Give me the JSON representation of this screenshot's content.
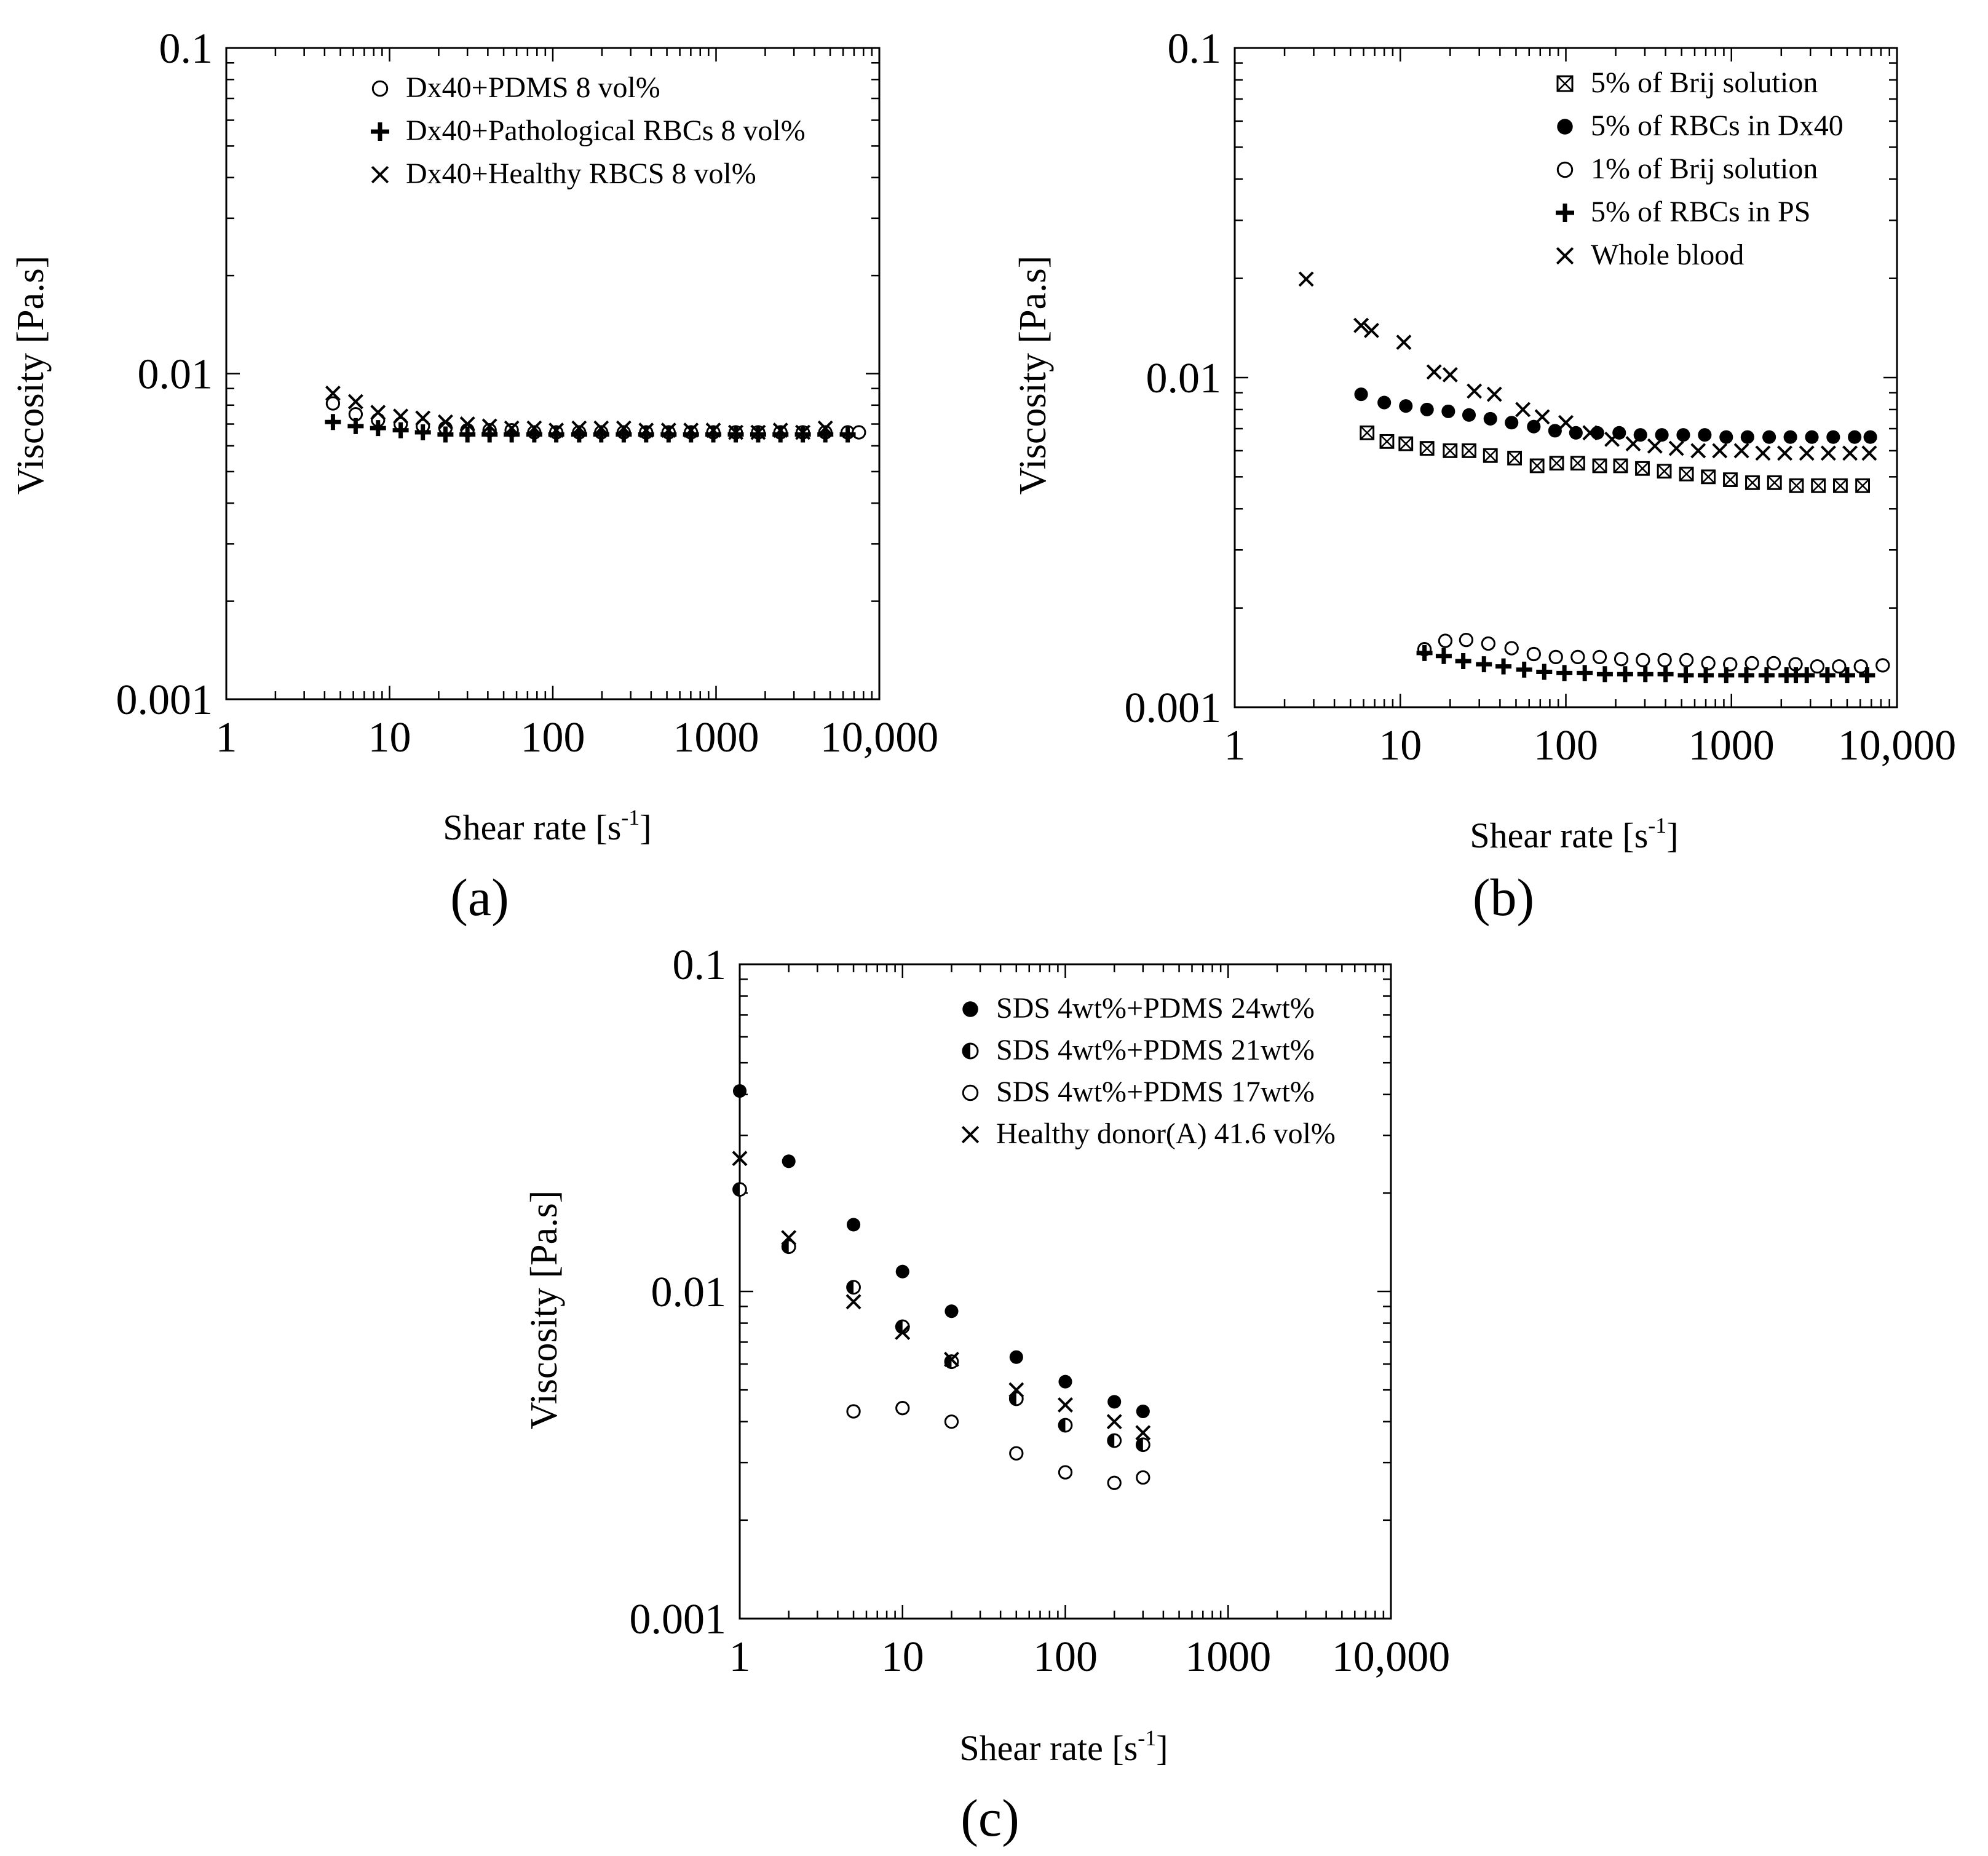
{
  "panels": [
    {
      "id": "a",
      "label": "(a)",
      "chart_data": {
        "type": "scatter",
        "xscale": "log",
        "yscale": "log",
        "xlim": [
          1,
          10000
        ],
        "ylim": [
          0.001,
          0.1
        ],
        "xlabel_main": "Shear rate  [s",
        "xlabel_sup": "-1",
        "xlabel_end": "]",
        "ylabel": "Viscosity [Pa.s]",
        "xticks": [
          {
            "v": 1,
            "t": "1"
          },
          {
            "v": 10,
            "t": "10"
          },
          {
            "v": 100,
            "t": "100"
          },
          {
            "v": 1000,
            "t": "1000"
          },
          {
            "v": 10000,
            "t": "10,000"
          }
        ],
        "yticks": [
          {
            "v": 0.1,
            "t": "0.1"
          },
          {
            "v": 0.01,
            "t": "0.01"
          },
          {
            "v": 0.001,
            "t": "0.001"
          }
        ],
        "legend_position": "top-right",
        "series": [
          {
            "name": "Dx40+PDMS 8 vol%",
            "marker": "circle",
            "x": [
              4.5,
              6.2,
              8.5,
              11.7,
              16,
              22,
              30,
              41,
              56,
              77,
              105,
              145,
              198,
              272,
              373,
              512,
              702,
              962,
              1320,
              1810,
              2480,
              3400,
              4670,
              6400,
              7500
            ],
            "y": [
              0.0081,
              0.0075,
              0.0072,
              0.007,
              0.0069,
              0.0068,
              0.0067,
              0.0067,
              0.0067,
              0.0066,
              0.0066,
              0.0066,
              0.0066,
              0.0066,
              0.0066,
              0.0066,
              0.0066,
              0.0066,
              0.0066,
              0.0066,
              0.0066,
              0.0066,
              0.0066,
              0.0066,
              0.0066
            ]
          },
          {
            "name": "Dx40+Pathological RBCs 8 vol%",
            "marker": "plus",
            "x": [
              4.5,
              6.2,
              8.5,
              11.7,
              16,
              22,
              30,
              41,
              56,
              77,
              105,
              145,
              198,
              272,
              373,
              512,
              702,
              962,
              1320,
              1810,
              2480,
              3400,
              4670,
              6400
            ],
            "y": [
              0.0071,
              0.0069,
              0.0068,
              0.0067,
              0.0066,
              0.0065,
              0.0065,
              0.0065,
              0.0065,
              0.0065,
              0.0065,
              0.0065,
              0.0065,
              0.0065,
              0.0065,
              0.0065,
              0.0065,
              0.0065,
              0.0065,
              0.0065,
              0.0065,
              0.0065,
              0.0065,
              0.0065
            ]
          },
          {
            "name": "Dx40+Healthy RBCS 8 vol%",
            "marker": "x",
            "x": [
              4.5,
              6.2,
              8.5,
              11.7,
              16,
              22,
              30,
              41,
              56,
              77,
              105,
              145,
              198,
              272,
              373,
              512,
              702,
              962,
              1320,
              1810,
              2480,
              3400,
              4670
            ],
            "y": [
              0.0087,
              0.0082,
              0.0076,
              0.0074,
              0.0073,
              0.0071,
              0.007,
              0.0069,
              0.0068,
              0.0068,
              0.0067,
              0.0068,
              0.0068,
              0.0068,
              0.0067,
              0.0067,
              0.0067,
              0.0067,
              0.0066,
              0.0066,
              0.0067,
              0.0066,
              0.0068
            ]
          }
        ]
      }
    },
    {
      "id": "b",
      "label": "(b)",
      "chart_data": {
        "type": "scatter",
        "xscale": "log",
        "yscale": "log",
        "xlim": [
          1,
          10000
        ],
        "ylim": [
          0.001,
          0.1
        ],
        "xlabel_main": "Shear rate  [s",
        "xlabel_sup": "-1",
        "xlabel_end": "]",
        "ylabel": "Viscosity [Pa.s]",
        "xticks": [
          {
            "v": 1,
            "t": "1"
          },
          {
            "v": 10,
            "t": "10"
          },
          {
            "v": 100,
            "t": "100"
          },
          {
            "v": 1000,
            "t": "1000"
          },
          {
            "v": 10000,
            "t": "10,000"
          }
        ],
        "yticks": [
          {
            "v": 0.1,
            "t": "0.1"
          },
          {
            "v": 0.01,
            "t": "0.01"
          },
          {
            "v": 0.001,
            "t": "0.001"
          }
        ],
        "legend_position": "top-right",
        "series": [
          {
            "name": "5% of Brij solution",
            "marker": "boxx",
            "x": [
              6.3,
              8.3,
              10.8,
              14.5,
              20,
              26,
              35,
              49,
              67,
              88,
              118,
              160,
              214,
              290,
              393,
              535,
              725,
              985,
              1340,
              1820,
              2470,
              3350,
              4550,
              6200
            ],
            "y": [
              0.0068,
              0.0064,
              0.0063,
              0.0061,
              0.006,
              0.006,
              0.0058,
              0.0057,
              0.0054,
              0.0055,
              0.0055,
              0.0054,
              0.0054,
              0.0053,
              0.0052,
              0.0051,
              0.005,
              0.0049,
              0.0048,
              0.0048,
              0.0047,
              0.0047,
              0.0047,
              0.0047
            ]
          },
          {
            "name": "5% of RBCs in Dx40",
            "marker": "filled",
            "x": [
              5.8,
              8,
              10.8,
              14.5,
              19.5,
              26,
              35,
              47,
              64,
              86,
              115,
              155,
              210,
              282,
              380,
              512,
              690,
              930,
              1250,
              1690,
              2270,
              3060,
              4120,
              5550,
              6900
            ],
            "y": [
              0.0089,
              0.0084,
              0.0082,
              0.008,
              0.0079,
              0.0077,
              0.0075,
              0.0073,
              0.0071,
              0.0069,
              0.0068,
              0.0068,
              0.0068,
              0.0067,
              0.0067,
              0.0067,
              0.0067,
              0.0066,
              0.0066,
              0.0066,
              0.0066,
              0.0066,
              0.0066,
              0.0066,
              0.0066
            ]
          },
          {
            "name": "1% of Brij solution",
            "marker": "circle",
            "x": [
              14,
              18.7,
              25,
              34,
              47,
              64,
              87,
              118,
              160,
              216,
              292,
              395,
              535,
              725,
              983,
              1330,
              1800,
              2440,
              3300,
              4470,
              6050,
              8200
            ],
            "y": [
              0.0015,
              0.00159,
              0.0016,
              0.00156,
              0.00151,
              0.00145,
              0.00142,
              0.00142,
              0.00142,
              0.0014,
              0.00139,
              0.00139,
              0.00139,
              0.00136,
              0.00135,
              0.00136,
              0.00136,
              0.00135,
              0.00133,
              0.00133,
              0.00133,
              0.00134
            ]
          },
          {
            "name": "5% of RBCs in PS",
            "marker": "plus",
            "x": [
              14,
              18.3,
              24,
              32,
              42,
              56,
              74,
              98,
              130,
              172,
              228,
              302,
              400,
              530,
              700,
              930,
              1230,
              1630,
              2150,
              2450,
              2850,
              3800,
              5000,
              6600
            ],
            "y": [
              0.00146,
              0.00143,
              0.00138,
              0.00135,
              0.00133,
              0.0013,
              0.00128,
              0.00127,
              0.00127,
              0.00126,
              0.00126,
              0.00126,
              0.00126,
              0.00125,
              0.00125,
              0.00125,
              0.00125,
              0.00125,
              0.00125,
              0.00125,
              0.00125,
              0.00125,
              0.00125,
              0.00125
            ]
          },
          {
            "name": "Whole blood",
            "marker": "x",
            "x": [
              2.7,
              5.8,
              6.7,
              10.5,
              16,
              20,
              28,
              37,
              55,
              72,
              100,
              140,
              190,
              255,
              345,
              465,
              630,
              850,
              1150,
              1550,
              2100,
              2850,
              3850,
              5200,
              6800
            ],
            "y": [
              0.0199,
              0.0144,
              0.0139,
              0.0128,
              0.0104,
              0.0102,
              0.0091,
              0.0089,
              0.008,
              0.0076,
              0.0073,
              0.0068,
              0.0065,
              0.0063,
              0.0062,
              0.0061,
              0.006,
              0.006,
              0.006,
              0.0059,
              0.0059,
              0.0059,
              0.0059,
              0.0059,
              0.0059
            ]
          }
        ]
      }
    },
    {
      "id": "c",
      "label": "(c)",
      "chart_data": {
        "type": "scatter",
        "xscale": "log",
        "yscale": "log",
        "xlim": [
          1,
          10000
        ],
        "ylim": [
          0.001,
          0.1
        ],
        "xlabel_main": "Shear rate  [s",
        "xlabel_sup": "-1",
        "xlabel_end": "]",
        "ylabel": "Viscosity [Pa.s]",
        "xticks": [
          {
            "v": 1,
            "t": "1"
          },
          {
            "v": 10,
            "t": "10"
          },
          {
            "v": 100,
            "t": "100"
          },
          {
            "v": 1000,
            "t": "1000"
          },
          {
            "v": 10000,
            "t": "10,000"
          }
        ],
        "yticks": [
          {
            "v": 0.1,
            "t": "0.1"
          },
          {
            "v": 0.01,
            "t": "0.01"
          },
          {
            "v": 0.001,
            "t": "0.001"
          }
        ],
        "legend_position": "top-right",
        "series": [
          {
            "name": "SDS 4wt%+PDMS 24wt%",
            "marker": "filled",
            "x": [
              1,
              2,
              5,
              10,
              20,
              50,
              100,
              200,
              300
            ],
            "y": [
              0.041,
              0.025,
              0.016,
              0.0115,
              0.0087,
              0.0063,
              0.0053,
              0.0046,
              0.0043
            ]
          },
          {
            "name": "SDS 4wt%+PDMS 21wt%",
            "marker": "half",
            "x": [
              1,
              2,
              5,
              10,
              20,
              50,
              100,
              200,
              300
            ],
            "y": [
              0.0205,
              0.0137,
              0.0103,
              0.0078,
              0.0061,
              0.0047,
              0.0039,
              0.0035,
              0.0034
            ]
          },
          {
            "name": "SDS 4wt%+PDMS 17wt%",
            "marker": "circle",
            "x": [
              5,
              10,
              20,
              50,
              100,
              200,
              300
            ],
            "y": [
              0.0043,
              0.0044,
              0.004,
              0.0032,
              0.0028,
              0.0026,
              0.0027
            ]
          },
          {
            "name": "Healthy donor(A) 41.6 vol%",
            "marker": "x",
            "x": [
              1,
              2,
              5,
              10,
              20,
              50,
              100,
              200,
              300
            ],
            "y": [
              0.0255,
              0.0146,
              0.0093,
              0.0075,
              0.0062,
              0.005,
              0.0045,
              0.004,
              0.0037
            ]
          }
        ]
      }
    }
  ]
}
